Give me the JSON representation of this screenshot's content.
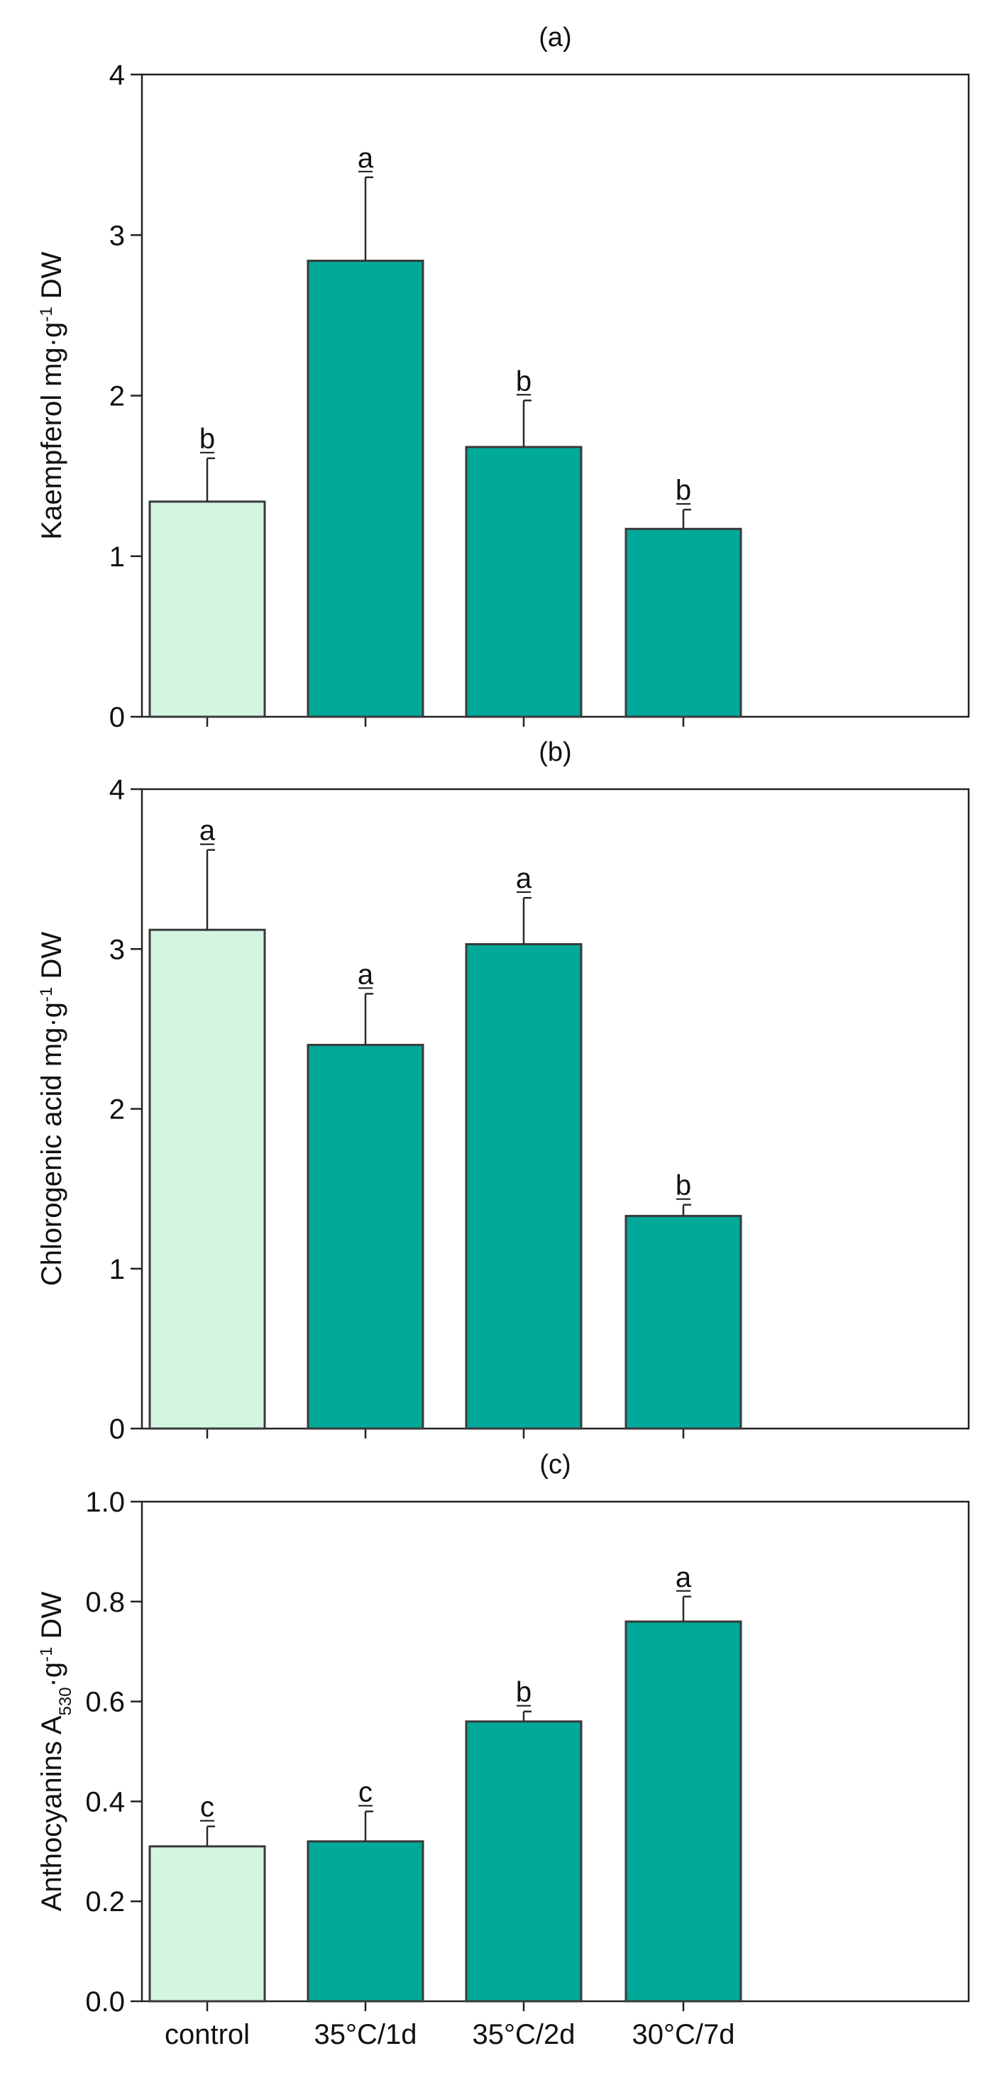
{
  "figure": {
    "categories": [
      "control",
      "35°C/1d",
      "35°C/2d",
      "30°C/7d"
    ],
    "colors": {
      "control": "#d3f5e2",
      "treatment": "#00a99a",
      "edge": "#3a3a3a"
    }
  },
  "chart_data": [
    {
      "type": "bar",
      "panel": "(a)",
      "title": "(a)",
      "ylabel": "Kaempferol mg·g⁻¹ DW",
      "ylabel_parts": {
        "main": "Kaempferol mg·g",
        "sup": "-1",
        "tail": " DW"
      },
      "categories": [
        "control",
        "35°C/1d",
        "35°C/2d",
        "30°C/7d"
      ],
      "values": [
        1.34,
        2.84,
        1.68,
        1.17
      ],
      "errors": [
        0.27,
        0.52,
        0.29,
        0.12
      ],
      "significance": [
        "b",
        "a",
        "b",
        "b"
      ],
      "ylim": [
        0,
        4
      ],
      "yticks": [
        0,
        1,
        2,
        3,
        4
      ],
      "ytick_labels": [
        "0",
        "1",
        "2",
        "3",
        "4"
      ]
    },
    {
      "type": "bar",
      "panel": "(b)",
      "title": "(b)",
      "ylabel": "Chlorogenic acid mg·g⁻¹ DW",
      "ylabel_parts": {
        "main": "Chlorogenic acid mg·g",
        "sup": "-1",
        "tail": " DW"
      },
      "categories": [
        "control",
        "35°C/1d",
        "35°C/2d",
        "30°C/7d"
      ],
      "values": [
        3.12,
        2.4,
        3.03,
        1.33
      ],
      "errors": [
        0.5,
        0.32,
        0.29,
        0.07
      ],
      "significance": [
        "a",
        "a",
        "a",
        "b"
      ],
      "ylim": [
        0,
        4
      ],
      "yticks": [
        0,
        1,
        2,
        3,
        4
      ],
      "ytick_labels": [
        "0",
        "1",
        "2",
        "3",
        "4"
      ]
    },
    {
      "type": "bar",
      "panel": "(c)",
      "title": "(c)",
      "ylabel": "Anthocyanins A530·g⁻¹ DW",
      "ylabel_parts": {
        "main": "Anthocyanins A",
        "sub": "530",
        "mid": "·g",
        "sup": "-1",
        "tail": " DW"
      },
      "categories": [
        "control",
        "35°C/1d",
        "35°C/2d",
        "30°C/7d"
      ],
      "values": [
        0.31,
        0.32,
        0.56,
        0.76
      ],
      "errors": [
        0.04,
        0.06,
        0.02,
        0.05
      ],
      "significance": [
        "c",
        "c",
        "b",
        "a"
      ],
      "ylim": [
        0,
        1.0
      ],
      "yticks": [
        0,
        0.2,
        0.4,
        0.6,
        0.8,
        1.0
      ],
      "ytick_labels": [
        "0.0",
        "0.2",
        "0.4",
        "0.6",
        "0.8",
        "1.0"
      ]
    }
  ]
}
